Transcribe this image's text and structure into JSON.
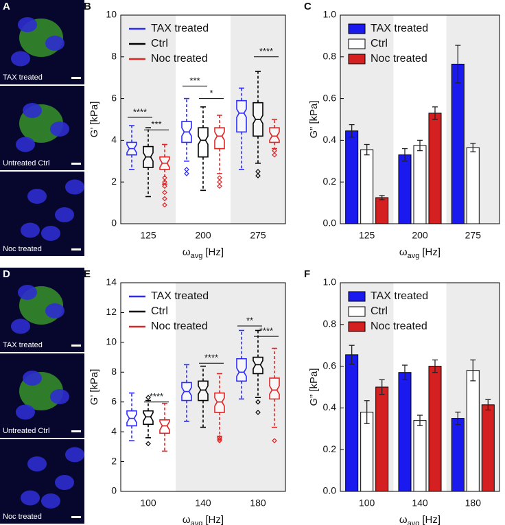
{
  "images": [
    {
      "panel": "A",
      "captions": [
        "TAX treated",
        "Untreated Ctrl",
        "Noc treated"
      ]
    },
    {
      "panel": "D",
      "captions": [
        "TAX treated",
        "Untreated Ctrl",
        "Noc treated"
      ]
    }
  ],
  "chart_data": [
    {
      "type": "box",
      "panel": "B",
      "y_label": "G’ [kPa]",
      "x_label": {
        "symbol": "ω",
        "subscript": "avg",
        "unit": "[Hz]"
      },
      "categories": [
        "125",
        "200",
        "275"
      ],
      "ylim": [
        0,
        10
      ],
      "yticks": [
        0,
        2,
        4,
        6,
        8,
        10
      ],
      "shaded": [
        true,
        false,
        true
      ],
      "legend": "upper left",
      "series": [
        {
          "name": "TAX treated",
          "color": "#2b2bff",
          "boxes": [
            {
              "whislo": 2.6,
              "q1": 3.3,
              "med": 3.6,
              "q3": 3.9,
              "whishi": 4.7,
              "fliers": []
            },
            {
              "whislo": 3.0,
              "q1": 3.9,
              "med": 4.4,
              "q3": 4.9,
              "whishi": 6.0,
              "fliers": [
                2.6,
                2.4
              ]
            },
            {
              "whislo": 2.6,
              "q1": 4.4,
              "med": 5.3,
              "q3": 5.9,
              "whishi": 6.5,
              "fliers": []
            }
          ]
        },
        {
          "name": "Ctrl",
          "color": "#000000",
          "boxes": [
            {
              "whislo": 1.3,
              "q1": 2.7,
              "med": 3.2,
              "q3": 3.7,
              "whishi": 4.6,
              "fliers": []
            },
            {
              "whislo": 1.6,
              "q1": 3.2,
              "med": 4.0,
              "q3": 4.6,
              "whishi": 5.6,
              "fliers": []
            },
            {
              "whislo": 2.9,
              "q1": 4.2,
              "med": 5.0,
              "q3": 5.8,
              "whishi": 7.3,
              "fliers": [
                2.5,
                2.3
              ]
            }
          ]
        },
        {
          "name": "Noc treated",
          "color": "#e02424",
          "boxes": [
            {
              "whislo": 1.9,
              "q1": 2.6,
              "med": 2.9,
              "q3": 3.2,
              "whishi": 3.8,
              "fliers": [
                2.2,
                2.0,
                1.8,
                1.5,
                1.2,
                0.9
              ]
            },
            {
              "whislo": 2.4,
              "q1": 3.6,
              "med": 4.2,
              "q3": 4.6,
              "whishi": 5.2,
              "fliers": [
                2.2,
                2.0,
                1.8
              ]
            },
            {
              "whislo": 3.6,
              "q1": 3.9,
              "med": 4.2,
              "q3": 4.6,
              "whishi": 5.0,
              "fliers": [
                3.5,
                3.3
              ]
            }
          ]
        }
      ],
      "annotations": [
        {
          "text": "****",
          "category": 0,
          "series": [
            0,
            1
          ],
          "y": 5.1
        },
        {
          "text": "***",
          "category": 0,
          "series": [
            1,
            2
          ],
          "y": 4.5
        },
        {
          "text": "***",
          "category": 1,
          "series": [
            0,
            1
          ],
          "y": 6.6
        },
        {
          "text": "*",
          "category": 1,
          "series": [
            1,
            2
          ],
          "y": 6.0
        },
        {
          "text": "****",
          "category": 2,
          "series": [
            1,
            2
          ],
          "y": 8.0
        }
      ]
    },
    {
      "type": "bar",
      "panel": "C",
      "y_label": "G” [kPa]",
      "x_label": {
        "symbol": "ω",
        "subscript": "avg",
        "unit": "[Hz]"
      },
      "categories": [
        "125",
        "200",
        "275"
      ],
      "ylim": [
        0,
        1
      ],
      "yticks": [
        {
          "value": 0,
          "label": "0.0"
        },
        0.2,
        0.4,
        0.6,
        0.8,
        {
          "value": 1,
          "label": "1.0"
        }
      ],
      "shaded": [
        true,
        false,
        true
      ],
      "legend": "upper left",
      "series": [
        {
          "name": "TAX treated",
          "color": "#1a1aee",
          "values": [
            0.445,
            0.33,
            0.765
          ],
          "errors": [
            0.03,
            0.03,
            0.09
          ]
        },
        {
          "name": "Ctrl",
          "color": "#ffffff",
          "values": [
            0.355,
            0.375,
            0.365
          ],
          "errors": [
            0.025,
            0.025,
            0.02
          ]
        },
        {
          "name": "Noc treated",
          "color": "#d42020",
          "values": [
            0.125,
            0.53,
            null
          ],
          "errors": [
            0.01,
            0.03,
            null
          ]
        }
      ]
    },
    {
      "type": "box",
      "panel": "E",
      "y_label": "G’ [kPa]",
      "x_label": {
        "symbol": "ω",
        "subscript": "avg",
        "unit": "[Hz]"
      },
      "categories": [
        "100",
        "140",
        "180"
      ],
      "ylim": [
        0,
        14
      ],
      "yticks": [
        0,
        2,
        4,
        6,
        8,
        10,
        12,
        14
      ],
      "shaded": [
        false,
        true,
        true
      ],
      "legend": "upper left",
      "series": [
        {
          "name": "TAX treated",
          "color": "#2b2bff",
          "boxes": [
            {
              "whislo": 3.4,
              "q1": 4.4,
              "med": 4.9,
              "q3": 5.4,
              "whishi": 6.6,
              "fliers": []
            },
            {
              "whislo": 4.7,
              "q1": 6.1,
              "med": 6.7,
              "q3": 7.3,
              "whishi": 8.5,
              "fliers": []
            },
            {
              "whislo": 6.2,
              "q1": 7.4,
              "med": 8.0,
              "q3": 8.9,
              "whishi": 10.8,
              "fliers": []
            }
          ]
        },
        {
          "name": "Ctrl",
          "color": "#000000",
          "boxes": [
            {
              "whislo": 3.6,
              "q1": 4.5,
              "med": 5.0,
              "q3": 5.4,
              "whishi": 6.1,
              "fliers": [
                3.2,
                6.3
              ]
            },
            {
              "whislo": 4.3,
              "q1": 6.1,
              "med": 6.8,
              "q3": 7.4,
              "whishi": 8.4,
              "fliers": []
            },
            {
              "whislo": 6.3,
              "q1": 7.9,
              "med": 8.5,
              "q3": 9.0,
              "whishi": 10.8,
              "fliers": [
                6.0,
                5.3
              ]
            }
          ]
        },
        {
          "name": "Noc treated",
          "color": "#e02424",
          "boxes": [
            {
              "whislo": 2.7,
              "q1": 3.9,
              "med": 4.4,
              "q3": 4.8,
              "whishi": 5.9,
              "fliers": []
            },
            {
              "whislo": 3.7,
              "q1": 5.3,
              "med": 6.0,
              "q3": 6.6,
              "whishi": 7.9,
              "fliers": [
                3.6,
                3.5,
                3.4
              ]
            },
            {
              "whislo": 4.3,
              "q1": 6.2,
              "med": 6.8,
              "q3": 7.6,
              "whishi": 9.6,
              "fliers": [
                3.4
              ]
            }
          ]
        }
      ],
      "annotations": [
        {
          "text": "****",
          "category": 0,
          "series": [
            1,
            2
          ],
          "y": 6.0
        },
        {
          "text": "****",
          "category": 1,
          "series": [
            1,
            2
          ],
          "y": 8.6
        },
        {
          "text": "**",
          "category": 2,
          "series": [
            0,
            1
          ],
          "y": 11.1
        },
        {
          "text": "****",
          "category": 2,
          "series": [
            1,
            2
          ],
          "y": 10.4
        }
      ]
    },
    {
      "type": "bar",
      "panel": "F",
      "y_label": "G” [kPa]",
      "x_label": {
        "symbol": "ω",
        "subscript": "avg",
        "unit": "[Hz]"
      },
      "categories": [
        "100",
        "140",
        "180"
      ],
      "ylim": [
        0,
        1
      ],
      "yticks": [
        {
          "value": 0,
          "label": "0.0"
        },
        0.2,
        0.4,
        0.6,
        0.8,
        {
          "value": 1,
          "label": "1.0"
        }
      ],
      "shaded": [
        true,
        false,
        true
      ],
      "legend": "upper left",
      "series": [
        {
          "name": "TAX treated",
          "color": "#1a1aee",
          "values": [
            0.655,
            0.57,
            0.35
          ],
          "errors": [
            0.045,
            0.035,
            0.03
          ]
        },
        {
          "name": "Ctrl",
          "color": "#ffffff",
          "values": [
            0.38,
            0.34,
            0.58
          ],
          "errors": [
            0.055,
            0.025,
            0.05
          ]
        },
        {
          "name": "Noc treated",
          "color": "#d42020",
          "values": [
            0.5,
            0.6,
            0.415
          ],
          "errors": [
            0.035,
            0.03,
            0.025
          ]
        }
      ]
    }
  ]
}
